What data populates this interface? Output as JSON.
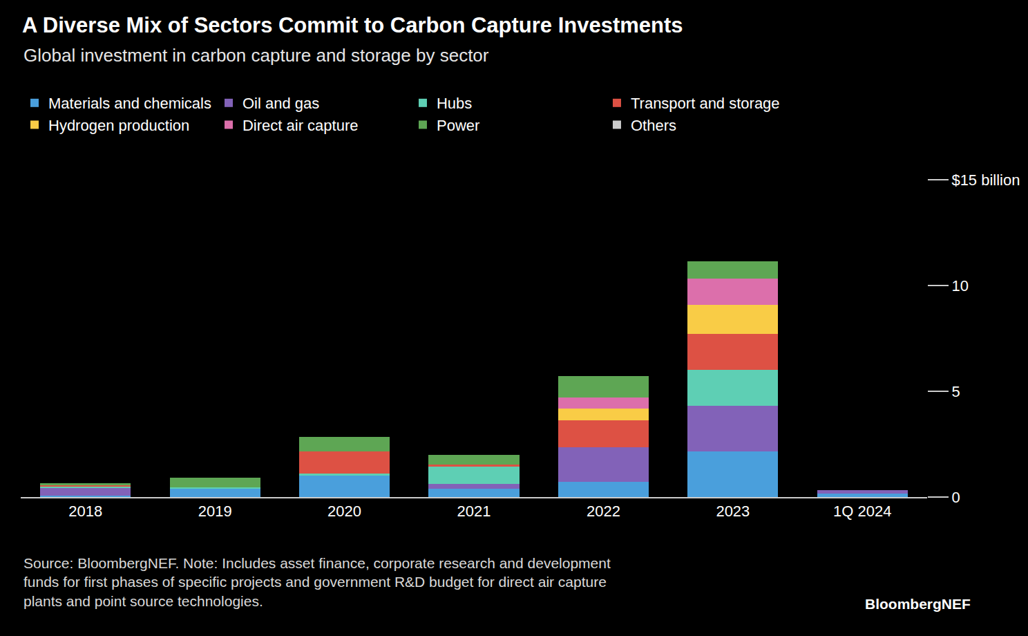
{
  "chart_data": {
    "type": "bar",
    "title": "A Diverse Mix of Sectors Commit to Carbon Capture Investments",
    "subtitle": "Global investment in carbon capture and storage by sector",
    "categories": [
      "2018",
      "2019",
      "2020",
      "2021",
      "2022",
      "2023",
      "1Q 2024"
    ],
    "series": [
      {
        "name": "Materials and chemicals",
        "color": "#4a9fdc",
        "values": [
          0.05,
          0.4,
          1.0,
          0.4,
          0.72,
          2.16,
          0.15
        ]
      },
      {
        "name": "Oil and gas",
        "color": "#8262b8",
        "values": [
          0.4,
          0.0,
          0.0,
          0.22,
          1.63,
          2.16,
          0.18
        ]
      },
      {
        "name": "Hubs",
        "color": "#5ecfb4",
        "values": [
          0.05,
          0.05,
          0.1,
          0.85,
          0.0,
          1.7,
          0.0
        ]
      },
      {
        "name": "Transport and storage",
        "color": "#dd5144",
        "values": [
          0.05,
          0.0,
          1.05,
          0.05,
          1.28,
          1.7,
          0.0
        ]
      },
      {
        "name": "Hydrogen production",
        "color": "#f9cc46",
        "values": [
          0.0,
          0.0,
          0.0,
          0.0,
          0.56,
          1.37,
          0.0
        ]
      },
      {
        "name": "Direct air capture",
        "color": "#dc6fab",
        "values": [
          0.0,
          0.0,
          0.0,
          0.0,
          0.52,
          1.24,
          0.0
        ]
      },
      {
        "name": "Power",
        "color": "#5ea654",
        "values": [
          0.1,
          0.45,
          0.7,
          0.48,
          1.02,
          0.82,
          0.0
        ]
      },
      {
        "name": "Others",
        "color": "#cccccc",
        "values": [
          0.0,
          0.0,
          0.0,
          0.0,
          0.0,
          0.0,
          0.0
        ]
      }
    ],
    "stacked": true,
    "ylim": [
      0,
      15
    ],
    "yticks": [
      0,
      5,
      10,
      {
        "value": 15,
        "label": "$15 billion"
      }
    ],
    "grid": false,
    "legend": "top left",
    "source": [
      "Source: BloombergNEF. Note: Includes asset finance, corporate research and development",
      "funds for first phases of specific projects and government R&D budget for direct air capture",
      "plants and point source technologies."
    ],
    "credit": "BloombergNEF"
  }
}
